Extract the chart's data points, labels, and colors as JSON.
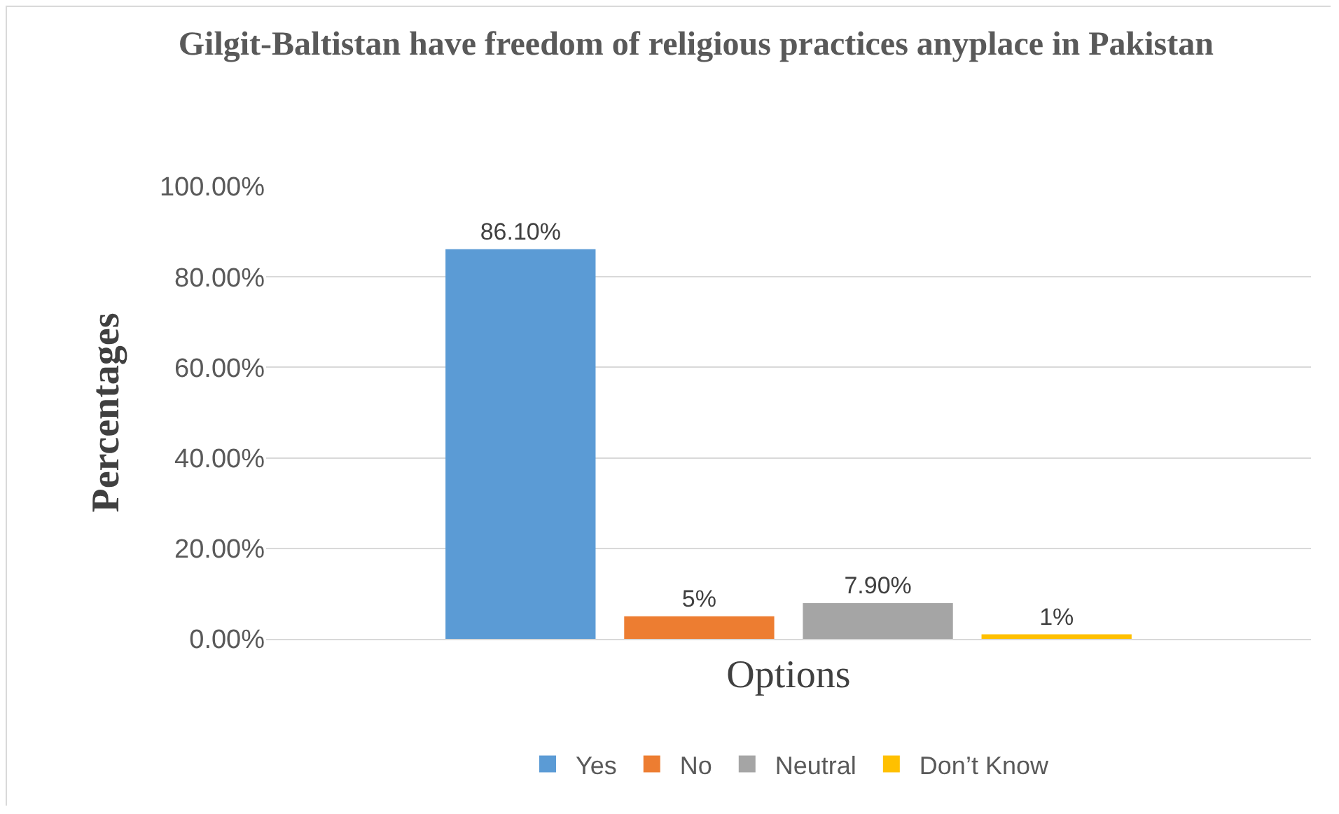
{
  "chart_data": {
    "type": "bar",
    "title": "Gilgit-Baltistan have freedom of religious practices anyplace in Pakistan",
    "ylabel": "Percentages",
    "categories": [
      "Options"
    ],
    "series": [
      {
        "name": "Yes",
        "color": "#5b9bd5",
        "values": [
          86.1
        ],
        "value_labels": [
          "86.10%"
        ]
      },
      {
        "name": "No",
        "color": "#ed7d31",
        "values": [
          5
        ],
        "value_labels": [
          "5%"
        ]
      },
      {
        "name": "Neutral",
        "color": "#a5a5a5",
        "values": [
          7.9
        ],
        "value_labels": [
          "7.90%"
        ]
      },
      {
        "name": "Don’t Know",
        "color": "#ffc000",
        "values": [
          1
        ],
        "value_labels": [
          "1%"
        ]
      }
    ],
    "ylim": [
      0,
      100
    ],
    "yticks": [
      {
        "value": 0,
        "label": "0.00%"
      },
      {
        "value": 20,
        "label": "20.00%"
      },
      {
        "value": 40,
        "label": "40.00%"
      },
      {
        "value": 60,
        "label": "60.00%"
      },
      {
        "value": 80,
        "label": "80.00%"
      },
      {
        "value": 100,
        "label": "100.00%"
      }
    ],
    "grid": "y",
    "legend": "bottom"
  }
}
